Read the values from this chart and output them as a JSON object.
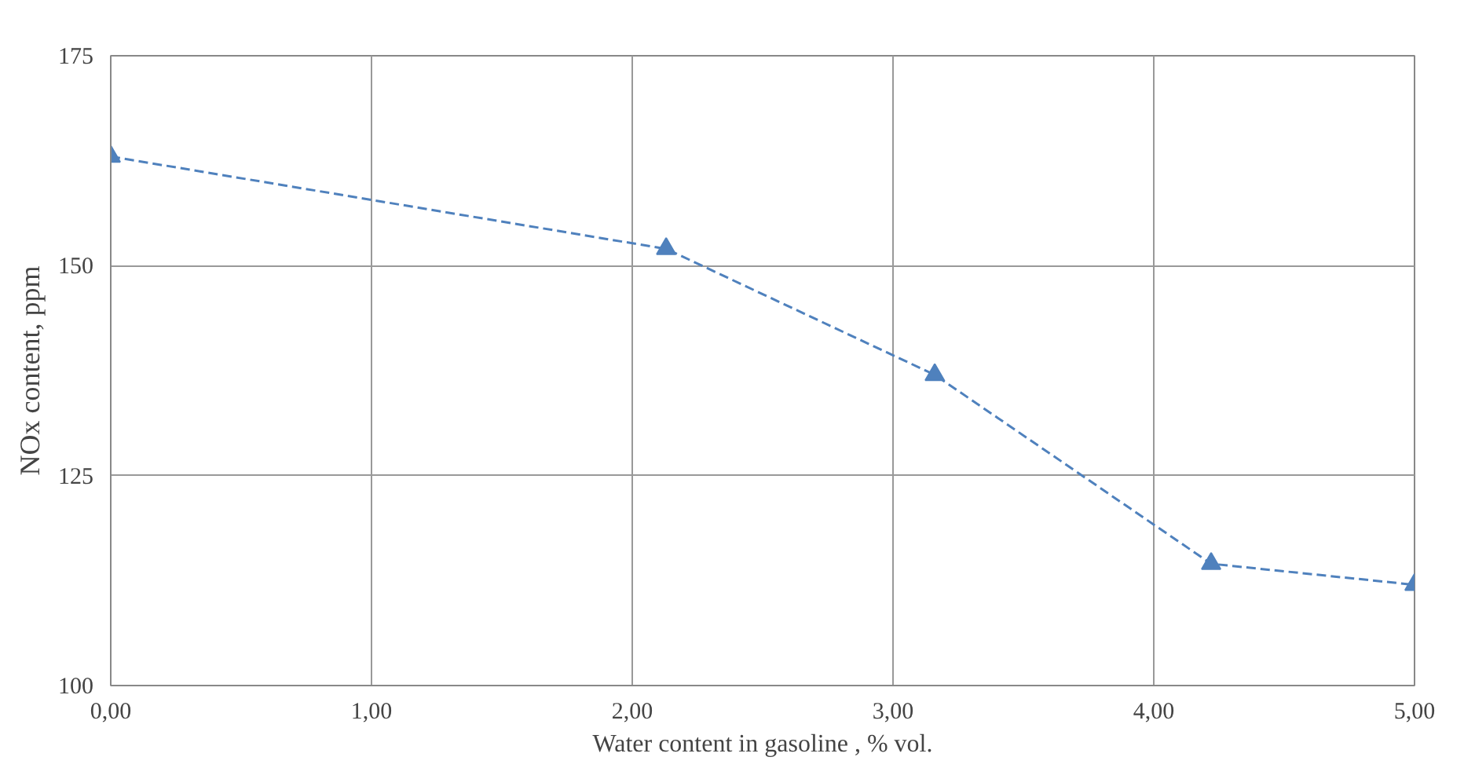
{
  "chart_data": {
    "type": "line",
    "xlabel": "Water content in gasoline , % vol.",
    "ylabel": "NOx content, ppm",
    "x": [
      0,
      2.13,
      3.16,
      4.22,
      5
    ],
    "series": [
      {
        "color": "#4f81bd",
        "values": [
          163,
          152,
          137,
          114.5,
          112
        ]
      }
    ],
    "xlim": [
      0,
      5
    ],
    "ylim": [
      100,
      175
    ],
    "xticks": [
      {
        "value": 0,
        "label": "0,00"
      },
      {
        "value": 1,
        "label": "1,00"
      },
      {
        "value": 2,
        "label": "2,00"
      },
      {
        "value": 3,
        "label": "3,00"
      },
      {
        "value": 4,
        "label": "4,00"
      },
      {
        "value": 5,
        "label": "5,00"
      }
    ],
    "yticks": [
      100,
      125,
      150,
      175
    ],
    "grid": true,
    "marker": "triangle",
    "line_style": "dashed"
  }
}
